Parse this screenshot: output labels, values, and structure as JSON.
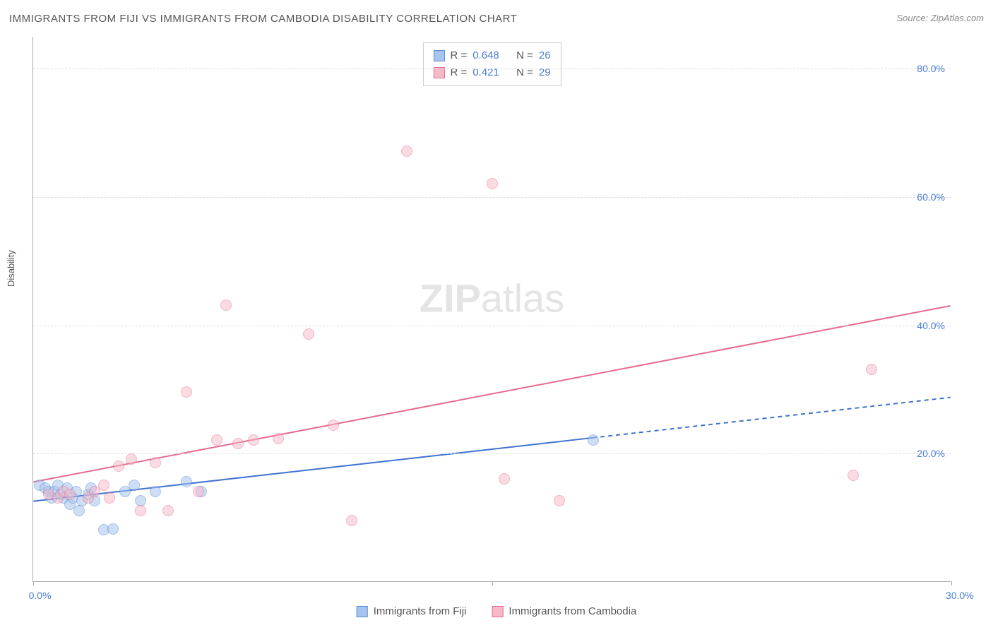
{
  "title": "IMMIGRANTS FROM FIJI VS IMMIGRANTS FROM CAMBODIA DISABILITY CORRELATION CHART",
  "source": "Source: ZipAtlas.com",
  "y_axis_label": "Disability",
  "watermark": {
    "bold": "ZIP",
    "rest": "atlas"
  },
  "chart": {
    "type": "scatter-with-trend",
    "xlim": [
      0,
      30
    ],
    "ylim": [
      0,
      85
    ],
    "x_ticks": [
      0.0,
      15.0,
      30.0
    ],
    "x_tick_labels": [
      "0.0%",
      "",
      "30.0%"
    ],
    "y_ticks": [
      20.0,
      40.0,
      60.0,
      80.0
    ],
    "y_tick_labels": [
      "20.0%",
      "40.0%",
      "60.0%",
      "80.0%"
    ],
    "grid_color": "#dddddd",
    "background_color": "#ffffff",
    "axis_label_color": "#4a7dd4",
    "axis_label_fontsize": 14,
    "marker_size": 16,
    "series": [
      {
        "name": "Immigrants from Fiji",
        "short": "fiji",
        "fill": "#a7c4ee",
        "stroke": "#5a8fd8",
        "fill_opacity": 0.55,
        "R": "0.648",
        "N": "26",
        "trend": {
          "x1": 0,
          "y1": 12.5,
          "x2": 18.3,
          "y2": 22.4,
          "dash_x2": 30,
          "dash_y2": 28.7,
          "color": "#3f72d0",
          "width": 2
        },
        "points": [
          [
            0.2,
            15.0
          ],
          [
            0.4,
            14.5
          ],
          [
            0.5,
            14.0
          ],
          [
            0.6,
            13.0
          ],
          [
            0.7,
            14.0
          ],
          [
            0.8,
            15.0
          ],
          [
            0.9,
            13.5
          ],
          [
            1.0,
            13.0
          ],
          [
            1.1,
            14.5
          ],
          [
            1.2,
            12.0
          ],
          [
            1.3,
            13.0
          ],
          [
            1.4,
            14.0
          ],
          [
            1.5,
            11.0
          ],
          [
            1.6,
            12.5
          ],
          [
            1.8,
            13.5
          ],
          [
            1.9,
            14.5
          ],
          [
            2.0,
            12.5
          ],
          [
            2.3,
            8.0
          ],
          [
            2.6,
            8.2
          ],
          [
            3.0,
            14.0
          ],
          [
            3.3,
            15.0
          ],
          [
            3.5,
            12.5
          ],
          [
            4.0,
            14.0
          ],
          [
            5.0,
            15.5
          ],
          [
            5.5,
            14.0
          ],
          [
            18.3,
            22.0
          ]
        ]
      },
      {
        "name": "Immigrants from Cambodia",
        "short": "cambodia",
        "fill": "#f6b9c7",
        "stroke": "#e66a8e",
        "fill_opacity": 0.5,
        "R": "0.421",
        "N": "29",
        "trend": {
          "x1": 0,
          "y1": 15.5,
          "x2": 30,
          "y2": 43.0,
          "color": "#e66a8e",
          "width": 2
        },
        "points": [
          [
            0.5,
            13.5
          ],
          [
            0.8,
            13.0
          ],
          [
            1.0,
            14.0
          ],
          [
            1.2,
            13.5
          ],
          [
            1.8,
            13.0
          ],
          [
            2.0,
            14.0
          ],
          [
            2.3,
            15.0
          ],
          [
            2.5,
            13.0
          ],
          [
            2.8,
            18.0
          ],
          [
            3.2,
            19.0
          ],
          [
            3.5,
            11.0
          ],
          [
            4.0,
            18.5
          ],
          [
            4.4,
            11.0
          ],
          [
            5.0,
            29.5
          ],
          [
            5.4,
            14.0
          ],
          [
            6.0,
            22.0
          ],
          [
            6.3,
            43.0
          ],
          [
            6.7,
            21.5
          ],
          [
            7.2,
            22.0
          ],
          [
            8.0,
            22.2
          ],
          [
            9.0,
            38.5
          ],
          [
            9.8,
            24.3
          ],
          [
            10.4,
            9.5
          ],
          [
            12.2,
            67.0
          ],
          [
            15.0,
            62.0
          ],
          [
            15.4,
            16.0
          ],
          [
            17.2,
            12.5
          ],
          [
            26.8,
            16.5
          ],
          [
            27.4,
            33.0
          ]
        ]
      }
    ]
  },
  "stats_box": {
    "r_label": "R =",
    "n_label": "N ="
  },
  "legend": [
    {
      "label": "Immigrants from Fiji",
      "fill": "#a7c4ee",
      "stroke": "#5a8fd8"
    },
    {
      "label": "Immigrants from Cambodia",
      "fill": "#f6b9c7",
      "stroke": "#e66a8e"
    }
  ]
}
